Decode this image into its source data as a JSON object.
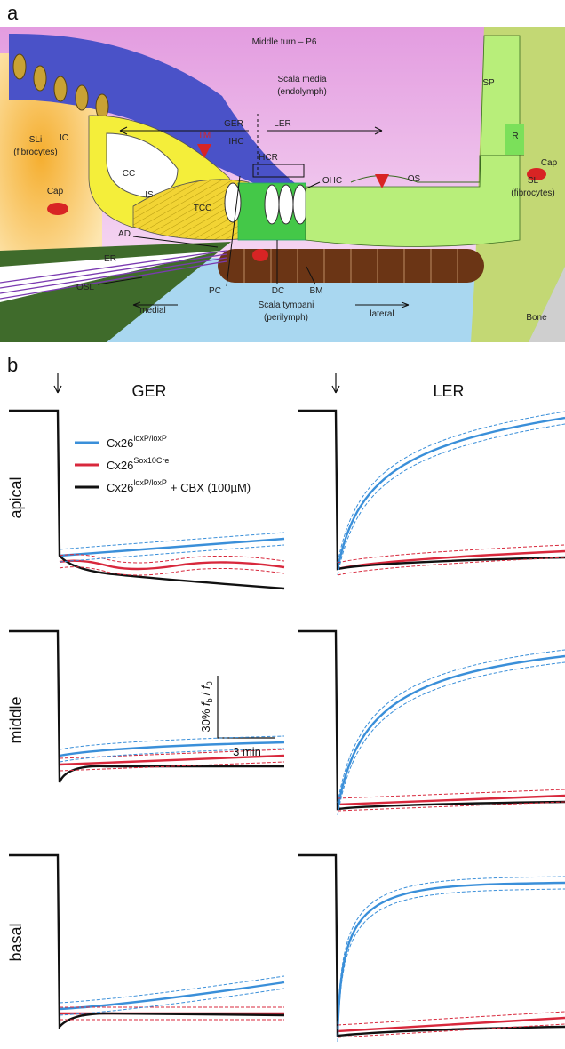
{
  "panel_a": {
    "label": "a",
    "labels": [
      "Middle turn – P6",
      "Scala media",
      "(endolymph)",
      "SP",
      "IC",
      "GER",
      "LER",
      "IHC",
      "HCR",
      "R",
      "SLi",
      "(fibrocytes)",
      "CC",
      "TM",
      "Cap",
      "IS",
      "TCC",
      "OHC",
      "OS",
      "SL",
      "(fibrocytes)",
      "Cap",
      "AD",
      "ER",
      "PC",
      "DC",
      "BM",
      "OSL",
      "medial",
      "Scala tympani",
      "(perilymph)",
      "lateral",
      "Bone"
    ]
  },
  "panel_b": {
    "label": "b",
    "columns": [
      "GER",
      "LER"
    ],
    "rows": [
      "apical",
      "middle",
      "basal"
    ],
    "legend": [
      {
        "base": "Cx26",
        "sup": "loxP/loxP",
        "color": "#3a8fd9"
      },
      {
        "base": "Cx26",
        "sup": "Sox10Cre",
        "color": "#d8283c"
      },
      {
        "base": "Cx26",
        "sup": "loxP/loxP",
        "suffix": "+ CBX (100µM)",
        "color": "#111111"
      }
    ],
    "scale_bar": {
      "prefix": "30%",
      "num": "f",
      "num_sub": "b",
      "sep": "/",
      "den": "f",
      "den_sub": "0",
      "x_label": "3 min"
    }
  }
}
